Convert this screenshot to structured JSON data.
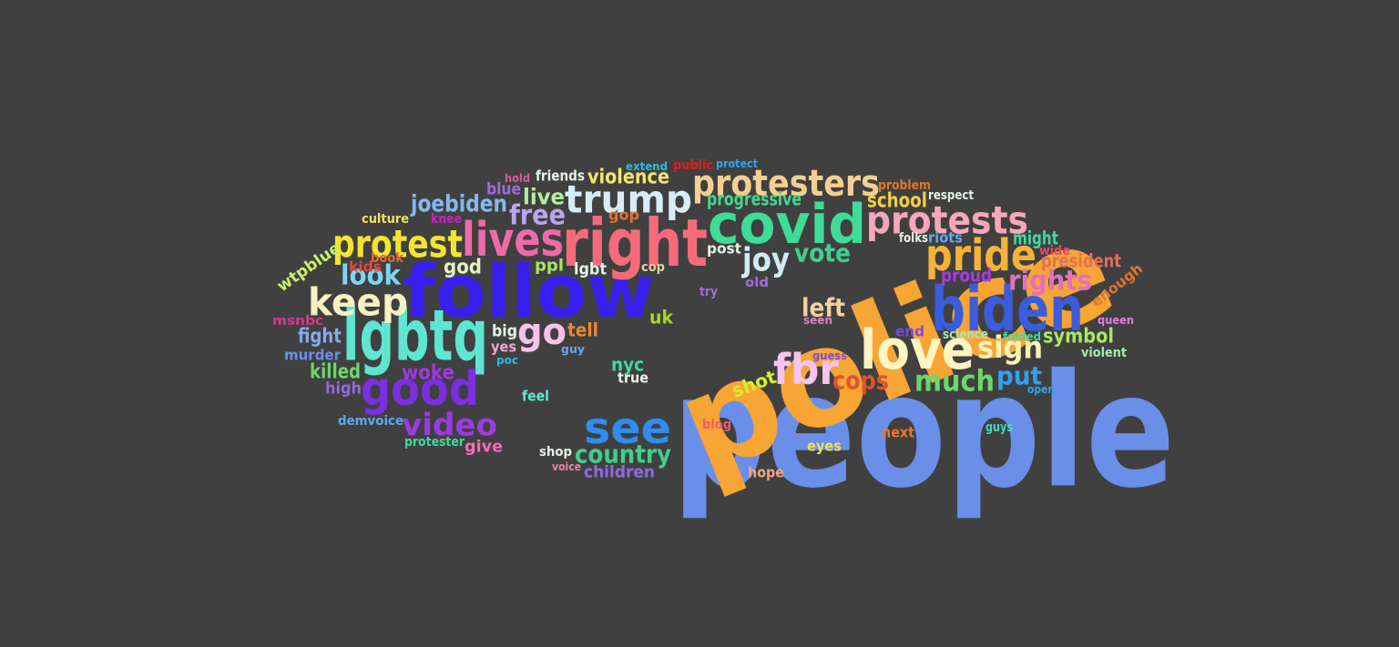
{
  "background": "#404040",
  "words": [
    {
      "text": "people",
      "color": "#6a8fe8"
    },
    {
      "text": "police",
      "color": "#f7a535"
    },
    {
      "text": "follow",
      "color": "#3a1ef0"
    },
    {
      "text": "right",
      "color": "#f56b7a"
    },
    {
      "text": "covid",
      "color": "#3fdc98"
    },
    {
      "text": "lgbtq",
      "color": "#5ee6d2"
    },
    {
      "text": "biden",
      "color": "#3c5ddb"
    },
    {
      "text": "love",
      "color": "#fff4c2"
    },
    {
      "text": "lives",
      "color": "#f06aa8"
    },
    {
      "text": "protests",
      "color": "#f7a6bc"
    },
    {
      "text": "protesters",
      "color": "#f4cf90"
    },
    {
      "text": "trump",
      "color": "#d8ecf7"
    },
    {
      "text": "pride",
      "color": "#f7b23a"
    },
    {
      "text": "protest",
      "color": "#f3e42d"
    },
    {
      "text": "good",
      "color": "#7b2fe0"
    },
    {
      "text": "keep",
      "color": "#f4f2c2"
    },
    {
      "text": "see",
      "color": "#2f8cf0"
    },
    {
      "text": "fbr",
      "color": "#f7c4f2"
    },
    {
      "text": "go",
      "color": "#f7c2e8"
    },
    {
      "text": "video",
      "color": "#9b3be0"
    },
    {
      "text": "joy",
      "color": "#d2ecf7"
    },
    {
      "text": "free",
      "color": "#b8a6f0"
    },
    {
      "text": "look",
      "color": "#7fd3f5"
    },
    {
      "text": "sign",
      "color": "#f9f0b5"
    },
    {
      "text": "rights",
      "color": "#e46fc0"
    },
    {
      "text": "much",
      "color": "#6bd86a"
    },
    {
      "text": "country",
      "color": "#3fd08a"
    },
    {
      "text": "cops",
      "color": "#e0522e"
    },
    {
      "text": "left",
      "color": "#f0d2a0"
    },
    {
      "text": "vote",
      "color": "#3fd090"
    },
    {
      "text": "put",
      "color": "#2fa2f0"
    },
    {
      "text": "joebiden",
      "color": "#86b8f0"
    },
    {
      "text": "violence",
      "color": "#f4e470"
    },
    {
      "text": "woke",
      "color": "#9b3be0"
    },
    {
      "text": "symbol",
      "color": "#a8e860"
    },
    {
      "text": "god",
      "color": "#e6f2c2"
    },
    {
      "text": "progressive",
      "color": "#42d88a"
    },
    {
      "text": "school",
      "color": "#f3d040"
    },
    {
      "text": "live",
      "color": "#b0f0a0"
    },
    {
      "text": "fight",
      "color": "#86a8f0"
    },
    {
      "text": "killed",
      "color": "#6bd86a"
    },
    {
      "text": "wtpblue",
      "color": "#c6f06a"
    },
    {
      "text": "president",
      "color": "#e0705a"
    },
    {
      "text": "proud",
      "color": "#a83be0"
    },
    {
      "text": "enough",
      "color": "#e0742e"
    },
    {
      "text": "might",
      "color": "#42d8a0"
    },
    {
      "text": "uk",
      "color": "#a8d820"
    },
    {
      "text": "shot",
      "color": "#d6f02a"
    },
    {
      "text": "nyc",
      "color": "#42d8a0"
    },
    {
      "text": "blue",
      "color": "#a06ae0"
    },
    {
      "text": "tell",
      "color": "#f0892e"
    },
    {
      "text": "big",
      "color": "#e6f2e6"
    },
    {
      "text": "ppl",
      "color": "#a8e860"
    },
    {
      "text": "lgbt",
      "color": "#e6f2e6"
    },
    {
      "text": "murder",
      "color": "#6a8fe8"
    },
    {
      "text": "high",
      "color": "#8e6ae0"
    },
    {
      "text": "give",
      "color": "#f46ab8"
    },
    {
      "text": "children",
      "color": "#8e6ae0"
    },
    {
      "text": "eyes",
      "color": "#f0e060"
    },
    {
      "text": "feel",
      "color": "#5ee6d2"
    },
    {
      "text": "riots",
      "color": "#5ea8f0"
    },
    {
      "text": "kids",
      "color": "#e04a3a"
    },
    {
      "text": "msnbc",
      "color": "#d83a8a"
    },
    {
      "text": "friends",
      "color": "#e6f2e6"
    },
    {
      "text": "yes",
      "color": "#f0a6d8"
    },
    {
      "text": "true",
      "color": "#e6f2e6"
    },
    {
      "text": "gop",
      "color": "#e0742e"
    },
    {
      "text": "next",
      "color": "#f0742e"
    },
    {
      "text": "culture",
      "color": "#f0e060"
    },
    {
      "text": "end",
      "color": "#7a4ae0"
    },
    {
      "text": "post",
      "color": "#e6f2e6"
    },
    {
      "text": "hope",
      "color": "#f0a680"
    },
    {
      "text": "shop",
      "color": "#e6f2e6"
    },
    {
      "text": "protester",
      "color": "#42d8a0"
    },
    {
      "text": "demvoice",
      "color": "#5ea8f0"
    },
    {
      "text": "old",
      "color": "#a06ae0"
    },
    {
      "text": "wide",
      "color": "#e04a6a"
    },
    {
      "text": "violent",
      "color": "#a8e8b0"
    },
    {
      "text": "science",
      "color": "#a8e8b0"
    },
    {
      "text": "respect",
      "color": "#e6f2e6"
    },
    {
      "text": "problem",
      "color": "#e0742e"
    },
    {
      "text": "extend",
      "color": "#2fb8e0"
    },
    {
      "text": "public",
      "color": "#e02020"
    },
    {
      "text": "protect",
      "color": "#2fa2f0"
    },
    {
      "text": "hold",
      "color": "#e05a9a"
    },
    {
      "text": "knee",
      "color": "#d020c0"
    },
    {
      "text": "book",
      "color": "#e06a3a"
    },
    {
      "text": "cop",
      "color": "#e6d2a0"
    },
    {
      "text": "try",
      "color": "#a06ae0"
    },
    {
      "text": "seen",
      "color": "#e080c0"
    },
    {
      "text": "guess",
      "color": "#7a4ae0"
    },
    {
      "text": "folks",
      "color": "#e6f2e6"
    },
    {
      "text": "folded",
      "color": "#42d8a0"
    },
    {
      "text": "queen",
      "color": "#e080e0"
    },
    {
      "text": "open",
      "color": "#2fa2f0"
    },
    {
      "text": "guys",
      "color": "#42d8c0"
    },
    {
      "text": "blog",
      "color": "#f05a6a"
    },
    {
      "text": "poc",
      "color": "#2fb8e0"
    },
    {
      "text": "guy",
      "color": "#5ea8f0"
    },
    {
      "text": "voice",
      "color": "#f080a0"
    }
  ]
}
